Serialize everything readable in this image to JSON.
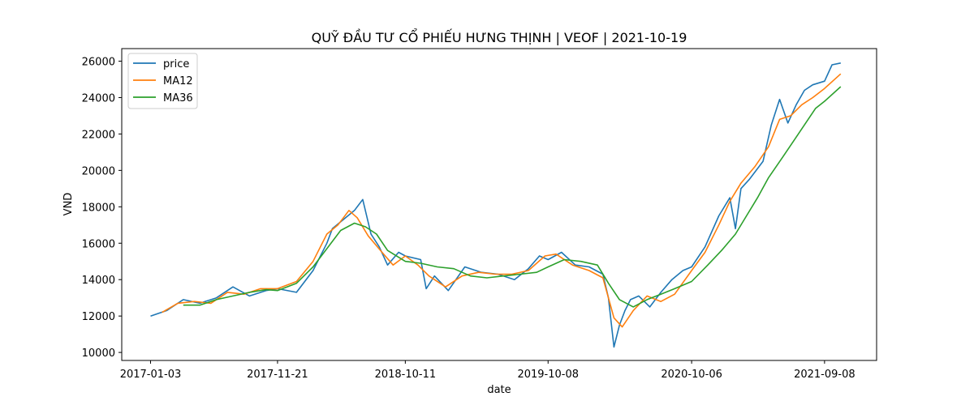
{
  "chart_data": {
    "type": "line",
    "title": "QUỸ ĐẦU TƯ CỔ PHIẾU HƯNG THỊNH | VEOF | 2021-10-19",
    "xlabel": "date",
    "ylabel": "VND",
    "x_ticks": [
      "2017-01-03",
      "2017-11-21",
      "2018-10-11",
      "2019-10-08",
      "2020-10-06",
      "2021-09-08"
    ],
    "y_ticks": [
      10000,
      12000,
      14000,
      16000,
      18000,
      20000,
      22000,
      24000,
      26000
    ],
    "xlim": [
      "2016-10-22",
      "2022-01-18"
    ],
    "ylim": [
      9560,
      26690
    ],
    "grid": false,
    "legend_position": "top-left",
    "colors": {
      "price": "#1f77b4",
      "MA12": "#ff7f0e",
      "MA36": "#2ca02c"
    },
    "series": [
      {
        "name": "price",
        "x": [
          "2017-01-03",
          "2017-02-13",
          "2017-03-27",
          "2017-05-08",
          "2017-06-19",
          "2017-07-31",
          "2017-09-11",
          "2017-10-23",
          "2017-11-21",
          "2018-01-08",
          "2018-02-19",
          "2018-03-26",
          "2018-04-09",
          "2018-05-07",
          "2018-06-04",
          "2018-06-25",
          "2018-07-16",
          "2018-08-06",
          "2018-08-27",
          "2018-09-24",
          "2018-10-11",
          "2018-11-19",
          "2018-12-03",
          "2018-12-24",
          "2019-01-28",
          "2019-03-11",
          "2019-04-22",
          "2019-06-03",
          "2019-07-15",
          "2019-08-19",
          "2019-09-16",
          "2019-10-08",
          "2019-11-11",
          "2019-12-16",
          "2020-01-20",
          "2020-02-24",
          "2020-03-09",
          "2020-03-23",
          "2020-04-06",
          "2020-04-20",
          "2020-05-04",
          "2020-05-25",
          "2020-06-22",
          "2020-07-20",
          "2020-08-17",
          "2020-09-14",
          "2020-10-06",
          "2020-11-09",
          "2020-12-14",
          "2021-01-11",
          "2021-01-25",
          "2021-02-08",
          "2021-03-01",
          "2021-04-05",
          "2021-04-26",
          "2021-05-17",
          "2021-06-07",
          "2021-06-28",
          "2021-07-19",
          "2021-08-09",
          "2021-09-08",
          "2021-09-27",
          "2021-10-19"
        ],
        "values": [
          12000,
          12300,
          12900,
          12700,
          13000,
          13600,
          13100,
          13400,
          13500,
          13300,
          14500,
          16000,
          16800,
          17300,
          17800,
          18400,
          16500,
          15800,
          14800,
          15500,
          15300,
          15100,
          13500,
          14200,
          13400,
          14700,
          14400,
          14300,
          14000,
          14600,
          15300,
          15100,
          15500,
          14800,
          14700,
          14300,
          13000,
          10300,
          11500,
          12300,
          12900,
          13100,
          12500,
          13300,
          14000,
          14500,
          14700,
          15800,
          17500,
          18500,
          16800,
          19000,
          19500,
          20500,
          22500,
          23900,
          22600,
          23600,
          24400,
          24700,
          24900,
          25800,
          25900
        ]
      },
      {
        "name": "MA12",
        "x": [
          "2017-02-01",
          "2017-03-13",
          "2017-04-24",
          "2017-06-05",
          "2017-07-17",
          "2017-08-28",
          "2017-10-09",
          "2017-11-21",
          "2018-01-08",
          "2018-02-19",
          "2018-03-26",
          "2018-04-23",
          "2018-05-21",
          "2018-06-11",
          "2018-07-09",
          "2018-08-13",
          "2018-09-10",
          "2018-10-11",
          "2018-11-12",
          "2018-12-10",
          "2019-01-21",
          "2019-03-04",
          "2019-04-15",
          "2019-05-27",
          "2019-07-08",
          "2019-08-19",
          "2019-09-30",
          "2019-10-28",
          "2019-12-09",
          "2020-01-20",
          "2020-02-24",
          "2020-03-23",
          "2020-04-13",
          "2020-05-11",
          "2020-06-15",
          "2020-07-20",
          "2020-08-24",
          "2020-10-06",
          "2020-11-09",
          "2020-12-14",
          "2021-01-11",
          "2021-02-08",
          "2021-03-15",
          "2021-04-19",
          "2021-05-17",
          "2021-06-14",
          "2021-07-12",
          "2021-08-09",
          "2021-09-08",
          "2021-10-19"
        ],
        "values": [
          12200,
          12700,
          12800,
          12700,
          13300,
          13200,
          13500,
          13500,
          13900,
          15000,
          16500,
          17000,
          17800,
          17400,
          16400,
          15500,
          14800,
          15300,
          14800,
          14200,
          13600,
          14200,
          14400,
          14300,
          14300,
          14500,
          15300,
          15400,
          14800,
          14500,
          14100,
          11900,
          11400,
          12300,
          13100,
          12800,
          13200,
          14500,
          15500,
          17000,
          18300,
          19300,
          20200,
          21300,
          22800,
          23000,
          23600,
          24000,
          24500,
          25300
        ]
      },
      {
        "name": "MA36",
        "x": [
          "2017-03-27",
          "2017-05-08",
          "2017-06-19",
          "2017-07-31",
          "2017-09-11",
          "2017-10-23",
          "2017-11-21",
          "2018-01-08",
          "2018-02-19",
          "2018-03-26",
          "2018-04-30",
          "2018-06-04",
          "2018-07-02",
          "2018-07-30",
          "2018-08-27",
          "2018-10-11",
          "2018-11-19",
          "2018-12-31",
          "2019-02-11",
          "2019-03-25",
          "2019-05-06",
          "2019-06-17",
          "2019-07-29",
          "2019-09-09",
          "2019-10-08",
          "2019-11-18",
          "2019-12-30",
          "2020-02-10",
          "2020-03-09",
          "2020-04-06",
          "2020-05-11",
          "2020-06-15",
          "2020-07-20",
          "2020-08-24",
          "2020-10-06",
          "2020-11-16",
          "2020-12-21",
          "2021-01-25",
          "2021-02-22",
          "2021-03-22",
          "2021-04-19",
          "2021-05-24",
          "2021-06-21",
          "2021-07-19",
          "2021-08-16",
          "2021-09-08",
          "2021-10-19"
        ],
        "values": [
          12600,
          12600,
          12900,
          13100,
          13300,
          13450,
          13400,
          13800,
          14700,
          15700,
          16700,
          17100,
          16900,
          16500,
          15600,
          15000,
          14900,
          14700,
          14600,
          14200,
          14100,
          14200,
          14300,
          14400,
          14700,
          15100,
          15000,
          14800,
          13800,
          12900,
          12500,
          12900,
          13200,
          13500,
          13900,
          14800,
          15600,
          16500,
          17500,
          18500,
          19600,
          20700,
          21600,
          22500,
          23400,
          23800,
          24600
        ]
      }
    ]
  }
}
